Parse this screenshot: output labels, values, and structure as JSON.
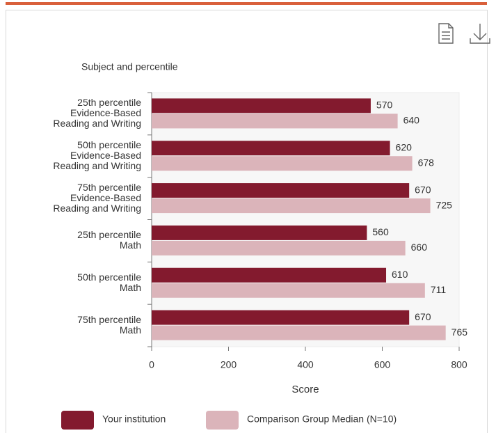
{
  "chart_data": {
    "type": "bar",
    "orientation": "horizontal",
    "axis_title_y": "Subject and percentile",
    "xlabel": "Score",
    "categories": [
      [
        "25th percentile",
        "Evidence-Based",
        "Reading and Writing"
      ],
      [
        "50th percentile",
        "Evidence-Based",
        "Reading and Writing"
      ],
      [
        "75th percentile",
        "Evidence-Based",
        "Reading and Writing"
      ],
      [
        "25th percentile",
        "Math"
      ],
      [
        "50th percentile",
        "Math"
      ],
      [
        "75th percentile",
        "Math"
      ]
    ],
    "series": [
      {
        "name": "Your institution",
        "color": "#831a2e",
        "values": [
          570,
          620,
          670,
          560,
          610,
          670
        ]
      },
      {
        "name": "Comparison Group Median (N=10)",
        "color": "#dbb4ba",
        "values": [
          640,
          678,
          725,
          660,
          711,
          765
        ]
      }
    ],
    "xlim": [
      0,
      800
    ],
    "xticks": [
      0,
      200,
      400,
      600,
      800
    ],
    "grid": false
  }
}
